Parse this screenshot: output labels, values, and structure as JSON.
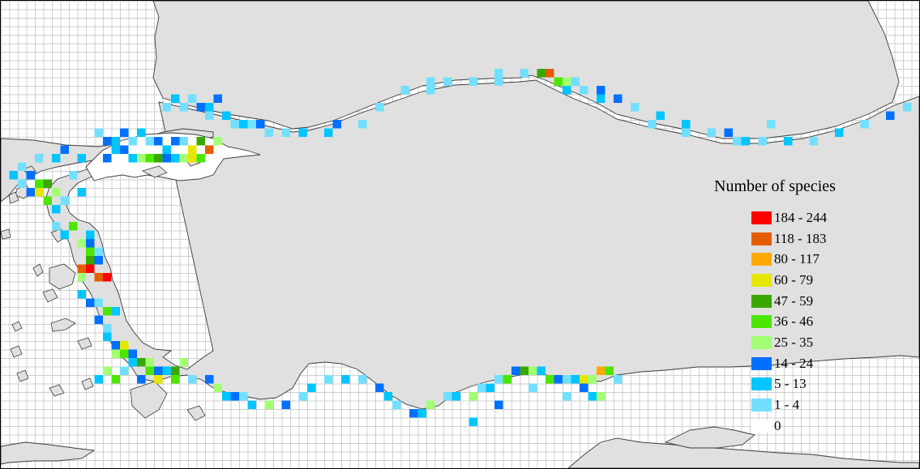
{
  "legend": {
    "title": "Number of species",
    "classes": [
      {
        "label": "184 - 244",
        "color": "#ff0000"
      },
      {
        "label": "118 - 183",
        "color": "#e65c00"
      },
      {
        "label": "80 - 117",
        "color": "#ffaa00"
      },
      {
        "label": "60 - 79",
        "color": "#e6e600"
      },
      {
        "label": "47 - 59",
        "color": "#38a800"
      },
      {
        "label": "36 - 46",
        "color": "#4ce600"
      },
      {
        "label": "25 - 35",
        "color": "#a3ff73"
      },
      {
        "label": "14 - 24",
        "color": "#0070ff"
      },
      {
        "label": "5 - 13",
        "color": "#00c5ff"
      },
      {
        "label": "1 - 4",
        "color": "#73dfff"
      },
      {
        "label": "0",
        "color": "#ffffff"
      }
    ]
  },
  "colors": {
    "land": "#e0e0e0",
    "grid": "#cfcfcf",
    "coast": "#3a3a3a"
  }
}
